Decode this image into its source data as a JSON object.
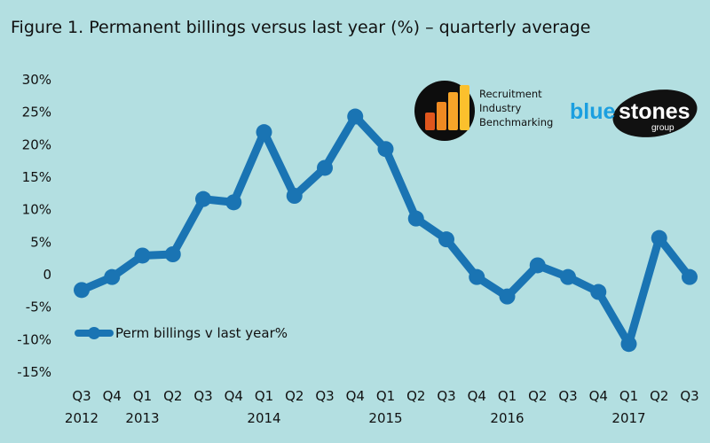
{
  "title": "Figure 1. Permanent billings versus last year (%) – quarterly average",
  "logos": {
    "rib": {
      "lines": [
        "Recruitment",
        "Industry",
        "Benchmarking"
      ]
    },
    "bluestones": {
      "word1": "blue",
      "word2": "stones",
      "sub": "group"
    }
  },
  "colors": {
    "background": "#b3dfe1",
    "series": "#1a74b3",
    "blue_brand": "#1b9fe0"
  },
  "chart_data": {
    "type": "line",
    "title": "Figure 1. Permanent billings versus last year (%) – quarterly average",
    "xlabel": "",
    "ylabel": "",
    "ylim": [
      -15,
      30
    ],
    "ytick_values": [
      30,
      25,
      20,
      15,
      10,
      5,
      0,
      -5,
      -10,
      -15
    ],
    "ytick_labels": [
      "30%",
      "25%",
      "20%",
      "15%",
      "10%",
      "5%",
      "0",
      "-5%",
      "-10%",
      "-15%"
    ],
    "categories": [
      "Q3",
      "Q4",
      "Q1",
      "Q2",
      "Q3",
      "Q4",
      "Q1",
      "Q2",
      "Q3",
      "Q4",
      "Q1",
      "Q2",
      "Q3",
      "Q4",
      "Q1",
      "Q2",
      "Q3",
      "Q4",
      "Q1",
      "Q2",
      "Q3"
    ],
    "year_labels": [
      {
        "index": 0,
        "label": "2012"
      },
      {
        "index": 2,
        "label": "2013"
      },
      {
        "index": 6,
        "label": "2014"
      },
      {
        "index": 10,
        "label": "2015"
      },
      {
        "index": 14,
        "label": "2016"
      },
      {
        "index": 18,
        "label": "2017"
      }
    ],
    "grid": false,
    "legend_position": "lower-left",
    "series": [
      {
        "name": "Perm billings v last year%",
        "values": [
          -2.5,
          -0.5,
          2.8,
          3.0,
          11.5,
          11.0,
          21.8,
          12.0,
          16.3,
          24.2,
          19.2,
          8.5,
          5.3,
          -0.5,
          -3.5,
          1.3,
          -0.5,
          -2.8,
          -10.8,
          5.5,
          -0.5
        ]
      }
    ]
  }
}
